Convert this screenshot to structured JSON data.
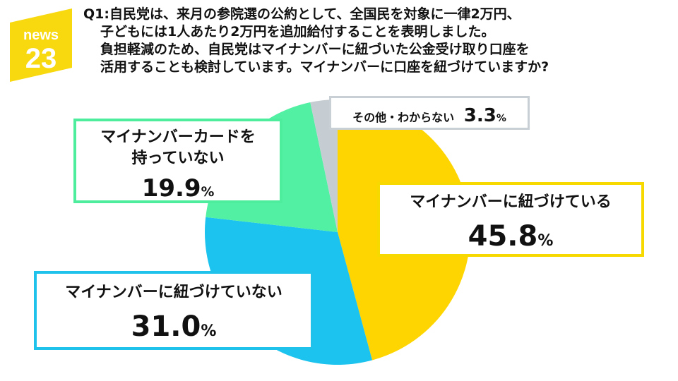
{
  "logo": {
    "name": "news",
    "number": "23"
  },
  "question": {
    "lines": [
      "Q1:自民党は、来月の参院選の公約として、全国民を対象に一律2万円、",
      "子どもには1人あたり2万円を追加給付することを表明しました。",
      "負担軽減のため、自民党はマイナンバーに紐づいた公金受け取り口座を",
      "活用することも検討しています。マイナンバーに口座を紐づけていますか?"
    ]
  },
  "colors": {
    "linked": "#fed500",
    "unlinked": "#1cc3ee",
    "nocard": "#52f0a3",
    "other": "#c5cdd3",
    "logo": "#f8d90f"
  },
  "chart_data": {
    "type": "pie",
    "unit": "%",
    "slices": [
      {
        "key": "linked",
        "label": "マイナンバーに紐づけている",
        "value": 45.8,
        "display": "45.8"
      },
      {
        "key": "unlinked",
        "label": "マイナンバーに紐づけていない",
        "value": 31.0,
        "display": "31.0"
      },
      {
        "key": "nocard",
        "label_line1": "マイナンバーカードを",
        "label_line2": "持っていない",
        "value": 19.9,
        "display": "19.9"
      },
      {
        "key": "other",
        "label": "その他・わからない",
        "value": 3.3,
        "display": "3.3"
      }
    ]
  }
}
